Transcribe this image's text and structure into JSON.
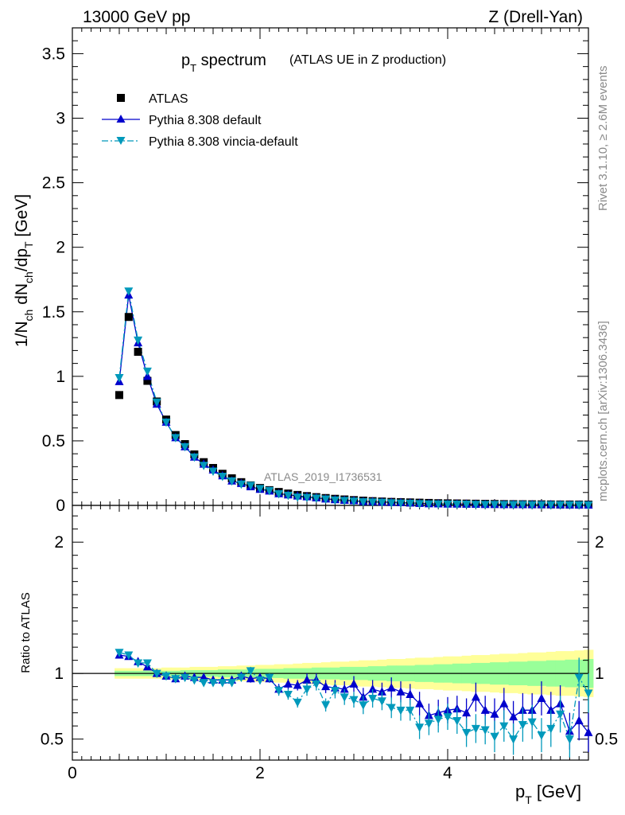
{
  "header": {
    "left": "13000 GeV pp",
    "right": "Z (Drell-Yan)"
  },
  "side_labels": {
    "rivet": "Rivet 3.1.10, ≥ 2.6M events",
    "mcplots": "mcplots.cern.ch [arXiv:1306.3436]"
  },
  "watermark": "ATLAS_2019_I1736531",
  "colors": {
    "atlas": "#000000",
    "default": "#0000cc",
    "vincia": "#0099bb",
    "band_inner": "#99ff99",
    "band_outer": "#ffff99"
  },
  "chart_data": [
    {
      "type": "scatter",
      "panel": "main",
      "title_main": "p",
      "title_sub": "T",
      "title_rest": " spectrum",
      "title_note": "(ATLAS UE in Z production)",
      "ylabel": "1/N_ch dN_ch/dp_T [GeV]",
      "xlim": [
        0,
        5.5
      ],
      "ylim": [
        0,
        3.7
      ],
      "yticks": [
        "0",
        "0.5",
        "1",
        "1.5",
        "2",
        "2.5",
        "3",
        "3.5"
      ],
      "ytick_values": [
        0,
        0.5,
        1,
        1.5,
        2,
        2.5,
        3,
        3.5
      ],
      "legend_position": "top-left",
      "x": [
        0.5,
        0.6,
        0.7,
        0.8,
        0.9,
        1.0,
        1.1,
        1.2,
        1.3,
        1.4,
        1.5,
        1.6,
        1.7,
        1.8,
        1.9,
        2.0,
        2.1,
        2.2,
        2.3,
        2.4,
        2.5,
        2.6,
        2.7,
        2.8,
        2.9,
        3.0,
        3.1,
        3.2,
        3.3,
        3.4,
        3.5,
        3.6,
        3.7,
        3.8,
        3.9,
        4.0,
        4.1,
        4.2,
        4.3,
        4.4,
        4.5,
        4.6,
        4.7,
        4.8,
        4.9,
        5.0,
        5.1,
        5.2,
        5.3,
        5.4,
        5.5
      ],
      "series": [
        {
          "name": "ATLAS",
          "marker": "square",
          "values": [
            0.855,
            1.46,
            1.19,
            0.965,
            0.805,
            0.665,
            0.545,
            0.475,
            0.395,
            0.335,
            0.29,
            0.245,
            0.21,
            0.18,
            0.155,
            0.135,
            0.118,
            0.104,
            0.092,
            0.081,
            0.072,
            0.064,
            0.057,
            0.051,
            0.046,
            0.041,
            0.037,
            0.033,
            0.03,
            0.027,
            0.025,
            0.023,
            0.021,
            0.019,
            0.017,
            0.016,
            0.015,
            0.014,
            0.013,
            0.012,
            0.011,
            0.01,
            0.0095,
            0.009,
            0.0085,
            0.008,
            0.0075,
            0.007,
            0.0068,
            0.0065,
            0.006
          ]
        },
        {
          "name": "Pythia 8.308 default",
          "marker": "triangle-up",
          "line": "solid",
          "values": [
            0.96,
            1.63,
            1.26,
            1.0,
            0.785,
            0.645,
            0.525,
            0.455,
            0.375,
            0.32,
            0.275,
            0.23,
            0.19,
            0.17,
            0.145,
            0.125,
            0.112,
            0.091,
            0.082,
            0.073,
            0.067,
            0.059,
            0.05,
            0.045,
            0.04,
            0.037,
            0.03,
            0.029,
            0.026,
            0.024,
            0.022,
            0.019,
            0.016,
            0.013,
            0.012,
            0.011,
            0.011,
            0.01,
            0.009,
            0.008,
            0.008,
            0.007,
            0.007,
            0.006,
            0.006,
            0.006,
            0.006,
            0.005,
            0.004,
            0.004,
            0.003
          ]
        },
        {
          "name": "Pythia 8.308 vincia-default",
          "marker": "triangle-down",
          "line": "dashdot",
          "values": [
            0.99,
            1.66,
            1.28,
            1.04,
            0.8,
            0.645,
            0.525,
            0.455,
            0.375,
            0.31,
            0.265,
            0.225,
            0.19,
            0.165,
            0.155,
            0.13,
            0.115,
            0.09,
            0.078,
            0.064,
            0.062,
            0.056,
            0.049,
            0.042,
            0.038,
            0.033,
            0.028,
            0.026,
            0.024,
            0.02,
            0.018,
            0.016,
            0.013,
            0.011,
            0.011,
            0.01,
            0.009,
            0.009,
            0.008,
            0.007,
            0.007,
            0.006,
            0.006,
            0.006,
            0.005,
            0.005,
            0.005,
            0.005,
            0.004,
            0.004,
            0.003
          ]
        }
      ]
    },
    {
      "type": "scatter",
      "panel": "ratio",
      "ylabel": "Ratio to ATLAS",
      "xlabel_main": "p",
      "xlabel_sub": "T",
      "xlabel_rest": " [GeV]",
      "xlim": [
        0,
        5.5
      ],
      "ylim": [
        0.34,
        2.28
      ],
      "yticks": [
        "0.5",
        "1",
        "2"
      ],
      "ytick_values": [
        0.5,
        1,
        2
      ],
      "xticks": [
        "0",
        "2",
        "4"
      ],
      "xtick_values": [
        0,
        2,
        4
      ],
      "x": [
        0.5,
        0.6,
        0.7,
        0.8,
        0.9,
        1.0,
        1.1,
        1.2,
        1.3,
        1.4,
        1.5,
        1.6,
        1.7,
        1.8,
        1.9,
        2.0,
        2.1,
        2.2,
        2.3,
        2.4,
        2.5,
        2.6,
        2.7,
        2.8,
        2.9,
        3.0,
        3.1,
        3.2,
        3.3,
        3.4,
        3.5,
        3.6,
        3.7,
        3.8,
        3.9,
        4.0,
        4.1,
        4.2,
        4.3,
        4.4,
        4.5,
        4.6,
        4.7,
        4.8,
        4.9,
        5.0,
        5.1,
        5.2,
        5.3,
        5.4,
        5.5
      ],
      "band_inner_halfwidth": [
        0.02,
        0.02,
        0.02,
        0.02,
        0.02,
        0.02,
        0.02,
        0.025,
        0.025,
        0.025,
        0.025,
        0.03,
        0.03,
        0.03,
        0.03,
        0.035,
        0.035,
        0.035,
        0.04,
        0.04,
        0.04,
        0.045,
        0.045,
        0.045,
        0.05,
        0.05,
        0.05,
        0.055,
        0.055,
        0.06,
        0.06,
        0.06,
        0.065,
        0.065,
        0.07,
        0.07,
        0.075,
        0.075,
        0.08,
        0.08,
        0.085,
        0.085,
        0.09,
        0.09,
        0.095,
        0.095,
        0.1,
        0.1,
        0.105,
        0.105,
        0.11
      ],
      "band_outer_halfwidth": [
        0.04,
        0.04,
        0.04,
        0.04,
        0.04,
        0.045,
        0.045,
        0.045,
        0.05,
        0.05,
        0.05,
        0.055,
        0.055,
        0.06,
        0.06,
        0.065,
        0.065,
        0.07,
        0.07,
        0.075,
        0.08,
        0.08,
        0.085,
        0.09,
        0.09,
        0.095,
        0.1,
        0.1,
        0.105,
        0.11,
        0.11,
        0.115,
        0.12,
        0.12,
        0.125,
        0.13,
        0.13,
        0.135,
        0.14,
        0.14,
        0.145,
        0.15,
        0.15,
        0.155,
        0.16,
        0.16,
        0.165,
        0.17,
        0.17,
        0.175,
        0.18
      ],
      "series": [
        {
          "name": "Pythia 8.308 default",
          "values": [
            1.14,
            1.13,
            1.09,
            1.05,
            1.0,
            0.98,
            0.96,
            0.98,
            0.97,
            0.97,
            0.95,
            0.95,
            0.95,
            0.98,
            0.96,
            0.97,
            0.96,
            0.88,
            0.92,
            0.91,
            0.95,
            0.95,
            0.9,
            0.89,
            0.88,
            0.92,
            0.82,
            0.88,
            0.86,
            0.89,
            0.86,
            0.84,
            0.77,
            0.68,
            0.7,
            0.72,
            0.73,
            0.7,
            0.82,
            0.72,
            0.69,
            0.77,
            0.67,
            0.72,
            0.72,
            0.81,
            0.72,
            0.77,
            0.56,
            0.64,
            0.55
          ],
          "errors": [
            0.02,
            0.02,
            0.02,
            0.02,
            0.02,
            0.02,
            0.02,
            0.02,
            0.02,
            0.02,
            0.02,
            0.02,
            0.02,
            0.03,
            0.03,
            0.03,
            0.03,
            0.04,
            0.04,
            0.04,
            0.05,
            0.05,
            0.05,
            0.06,
            0.06,
            0.06,
            0.07,
            0.07,
            0.07,
            0.08,
            0.08,
            0.08,
            0.09,
            0.09,
            0.1,
            0.1,
            0.1,
            0.11,
            0.11,
            0.11,
            0.12,
            0.12,
            0.12,
            0.13,
            0.13,
            0.13,
            0.14,
            0.14,
            0.14,
            0.15,
            0.15
          ]
        },
        {
          "name": "Pythia 8.308 vincia-default",
          "values": [
            1.16,
            1.14,
            1.08,
            1.08,
            1.0,
            0.98,
            0.96,
            0.97,
            0.95,
            0.93,
            0.93,
            0.93,
            0.93,
            0.97,
            1.02,
            0.95,
            0.97,
            0.87,
            0.84,
            0.78,
            0.88,
            0.92,
            0.76,
            0.87,
            0.82,
            0.8,
            0.76,
            0.81,
            0.79,
            0.74,
            0.72,
            0.72,
            0.59,
            0.62,
            0.65,
            0.67,
            0.64,
            0.55,
            0.58,
            0.57,
            0.52,
            0.6,
            0.5,
            0.61,
            0.63,
            0.53,
            0.58,
            0.69,
            0.5,
            0.97,
            0.85
          ],
          "errors": [
            0.02,
            0.02,
            0.02,
            0.02,
            0.02,
            0.02,
            0.02,
            0.02,
            0.02,
            0.02,
            0.02,
            0.02,
            0.02,
            0.03,
            0.03,
            0.03,
            0.03,
            0.04,
            0.04,
            0.04,
            0.05,
            0.05,
            0.05,
            0.06,
            0.06,
            0.06,
            0.07,
            0.07,
            0.07,
            0.08,
            0.08,
            0.08,
            0.09,
            0.09,
            0.1,
            0.1,
            0.1,
            0.11,
            0.11,
            0.11,
            0.12,
            0.12,
            0.12,
            0.13,
            0.13,
            0.13,
            0.14,
            0.14,
            0.14,
            0.15,
            0.15
          ]
        }
      ]
    }
  ]
}
